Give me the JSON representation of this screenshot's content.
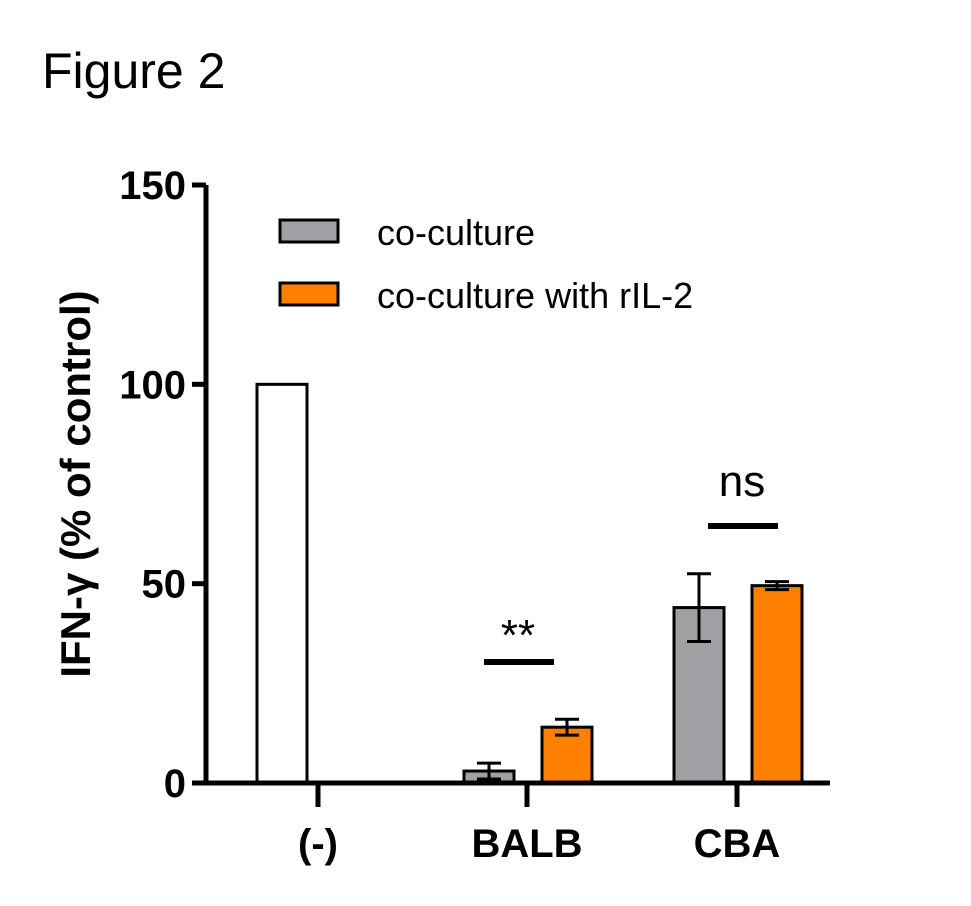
{
  "figure_title": "Figure 2",
  "chart_data": {
    "type": "bar",
    "title": "",
    "xlabel": "",
    "ylabel": "IFN-γ (% of control)",
    "ylim": [
      0,
      150
    ],
    "yticks": [
      0,
      50,
      100,
      150
    ],
    "categories": [
      "(-)",
      "BALB",
      "CBA"
    ],
    "control": {
      "category": "(-)",
      "value": 100,
      "color": "#ffffff"
    },
    "series": [
      {
        "name": "co-culture",
        "color": "#a0a0a4",
        "values": [
          null,
          3,
          44
        ],
        "errors": [
          null,
          2,
          8.5
        ]
      },
      {
        "name": "co-culture with rIL-2",
        "color": "#ff8000",
        "values": [
          null,
          14,
          49.5
        ],
        "errors": [
          null,
          2,
          1
        ]
      }
    ],
    "significance": [
      {
        "category": "BALB",
        "label": "**"
      },
      {
        "category": "CBA",
        "label": "ns"
      }
    ],
    "legend_position": "top-right"
  }
}
